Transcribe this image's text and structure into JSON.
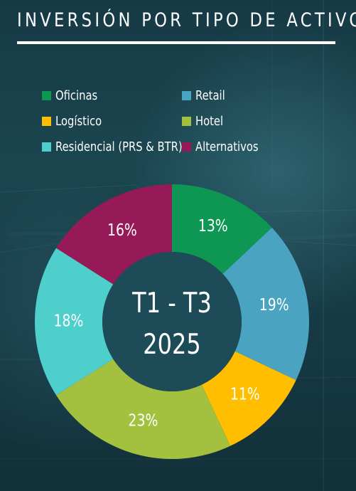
{
  "header": {
    "title": "INVERSIÓN POR TIPO DE ACTIVO"
  },
  "colors": {
    "background": "#173a45",
    "text": "#ffffff",
    "center_hole": "#1d4c58"
  },
  "chart_data": {
    "type": "pie",
    "categories": [
      "Oficinas",
      "Retail",
      "Logístico",
      "Hotel",
      "Residencial (PRS & BTR)",
      "Alternativos"
    ],
    "values": [
      13,
      19,
      11,
      23,
      18,
      16
    ],
    "value_labels": [
      "13%",
      "19%",
      "11%",
      "23%",
      "18%",
      "16%"
    ],
    "center_text": [
      "T1 - T3",
      "2025"
    ],
    "colors": [
      "#0e9752",
      "#4aa3c1",
      "#ffbf00",
      "#a4c03f",
      "#4ecfcb",
      "#961a58"
    ],
    "legend": {
      "placement": "top-left",
      "labels": [
        "Oficinas",
        "Retail",
        "Logístico",
        "Hotel",
        "Residencial (PRS & BTR)",
        "Alternativos"
      ]
    }
  }
}
